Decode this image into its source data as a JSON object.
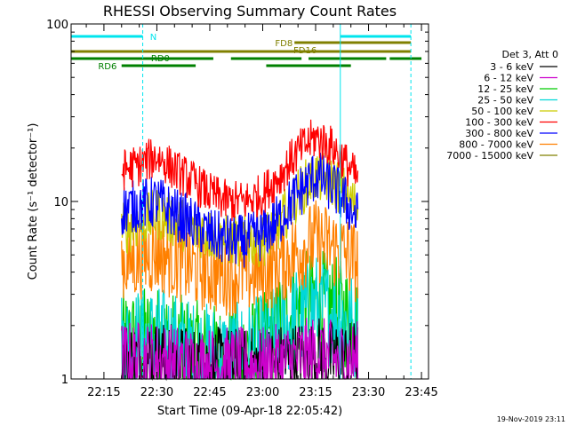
{
  "chart_data": {
    "type": "line",
    "title": "RHESSI Observing Summary Count Rates",
    "xlabel": "Start Time (09-Apr-18 22:05:42)",
    "ylabel": "Count Rate (s⁻¹ detector⁻¹)",
    "x_unit": "minutes",
    "xlim": [
      "22:05:42",
      "23:47:00"
    ],
    "x_ticks": [
      "22:15",
      "22:30",
      "22:45",
      "23:00",
      "23:15",
      "23:30",
      "23:45"
    ],
    "y_scale": "log",
    "ylim": [
      1,
      100
    ],
    "y_ticks": [
      "1",
      "10",
      "100"
    ],
    "grid": false,
    "legend_position": "right",
    "legend_title": "Det 3, Att 0",
    "data_start": "22:20:00",
    "data_end": "23:27:00",
    "series": [
      {
        "name": "3 - 6 keV",
        "color": "#000000",
        "x": [
          "22:20",
          "22:30",
          "22:40",
          "22:50",
          "23:00",
          "23:10",
          "23:15",
          "23:20",
          "23:27"
        ],
        "values": [
          1.3,
          1.3,
          1.2,
          1.2,
          1.2,
          1.3,
          1.4,
          1.3,
          1.3
        ]
      },
      {
        "name": "6 - 12 keV",
        "color": "#cc00cc",
        "x": [
          "22:20",
          "22:30",
          "22:40",
          "22:50",
          "23:00",
          "23:10",
          "23:15",
          "23:20",
          "23:27"
        ],
        "values": [
          1.3,
          1.3,
          1.2,
          1.2,
          1.2,
          1.3,
          1.4,
          1.3,
          1.3
        ]
      },
      {
        "name": "12 - 25 keV",
        "color": "#00cc00",
        "x": [
          "22:20",
          "22:30",
          "22:40",
          "22:50",
          "23:00",
          "23:10",
          "23:15",
          "23:20",
          "23:27"
        ],
        "values": [
          1.6,
          1.7,
          1.4,
          1.3,
          1.5,
          2.5,
          2.8,
          2.5,
          2.0
        ]
      },
      {
        "name": "25 - 50 keV",
        "color": "#00d8d8",
        "x": [
          "22:20",
          "22:30",
          "22:40",
          "22:50",
          "23:00",
          "23:10",
          "23:15",
          "23:20",
          "23:27"
        ],
        "values": [
          1.6,
          1.7,
          1.4,
          1.3,
          1.5,
          2.2,
          2.6,
          2.3,
          1.9
        ]
      },
      {
        "name": "50 - 100 keV",
        "color": "#cccc00",
        "x": [
          "22:20",
          "22:25",
          "22:30",
          "22:40",
          "22:50",
          "23:00",
          "23:05",
          "23:10",
          "23:15",
          "23:20",
          "23:25",
          "23:27"
        ],
        "values": [
          7.0,
          7.5,
          8.5,
          7.0,
          6.0,
          6.0,
          7.5,
          11.0,
          14.0,
          13.0,
          10.0,
          9.0
        ]
      },
      {
        "name": "100 - 300 keV",
        "color": "#ff0000",
        "x": [
          "22:20",
          "22:25",
          "22:30",
          "22:35",
          "22:40",
          "22:45",
          "22:50",
          "22:55",
          "23:00",
          "23:05",
          "23:10",
          "23:15",
          "23:20",
          "23:25",
          "23:27"
        ],
        "values": [
          15,
          16,
          18,
          15,
          13,
          11,
          10,
          10,
          11,
          14,
          19,
          23,
          20,
          15,
          13
        ]
      },
      {
        "name": "300 - 800 keV",
        "color": "#0000ff",
        "x": [
          "22:20",
          "22:25",
          "22:30",
          "22:35",
          "22:40",
          "22:45",
          "22:50",
          "22:55",
          "23:00",
          "23:05",
          "23:10",
          "23:15",
          "23:20",
          "23:25",
          "23:27"
        ],
        "values": [
          9,
          9.5,
          10,
          8.5,
          7.5,
          6.5,
          6,
          6,
          6.5,
          8,
          11,
          14,
          12,
          9,
          8
        ]
      },
      {
        "name": "800 - 7000 keV",
        "color": "#ff8000",
        "x": [
          "22:20",
          "22:25",
          "22:30",
          "22:35",
          "22:40",
          "22:45",
          "22:50",
          "22:55",
          "23:00",
          "23:05",
          "23:10",
          "23:15",
          "23:20",
          "23:25",
          "23:27"
        ],
        "values": [
          4.5,
          4.8,
          5.2,
          4.8,
          4.3,
          4.0,
          3.9,
          3.9,
          4.0,
          4.5,
          5.2,
          6.0,
          5.5,
          4.8,
          4.5
        ]
      },
      {
        "name": "7000 - 15000 keV",
        "color": "#808000",
        "x": [],
        "values": []
      }
    ],
    "annotations": {
      "bars": [
        {
          "label": "N",
          "color": "#00e5ee",
          "segments": [
            [
              "22:05:42",
              "22:26"
            ],
            [
              "23:22",
              "23:42"
            ]
          ]
        },
        {
          "label": "FD8",
          "color": "#808000",
          "segments": [
            [
              "23:09",
              "23:42"
            ]
          ]
        },
        {
          "label": "FD16",
          "color": "#808000",
          "segments": [
            [
              "22:05:42",
              "23:42"
            ]
          ]
        },
        {
          "label": "RD0",
          "color": "#008000",
          "segments": [
            [
              "22:05:42",
              "22:46"
            ],
            [
              "22:51",
              "23:11"
            ],
            [
              "23:13",
              "23:35"
            ],
            [
              "23:36",
              "23:45"
            ]
          ]
        },
        {
          "label": "RD6",
          "color": "#008000",
          "segments": [
            [
              "22:20",
              "22:41"
            ],
            [
              "23:01",
              "23:25"
            ]
          ]
        }
      ],
      "vlines": [
        {
          "x": "22:05:42",
          "color": "#00e5ee",
          "style": "solid"
        },
        {
          "x": "22:26",
          "color": "#00e5ee",
          "style": "dashed"
        },
        {
          "x": "23:22",
          "color": "#00e5ee",
          "style": "solid"
        },
        {
          "x": "23:42",
          "color": "#00e5ee",
          "style": "dashed"
        }
      ]
    }
  },
  "footer": {
    "date_stamp": "19-Nov-2019 23:11"
  }
}
